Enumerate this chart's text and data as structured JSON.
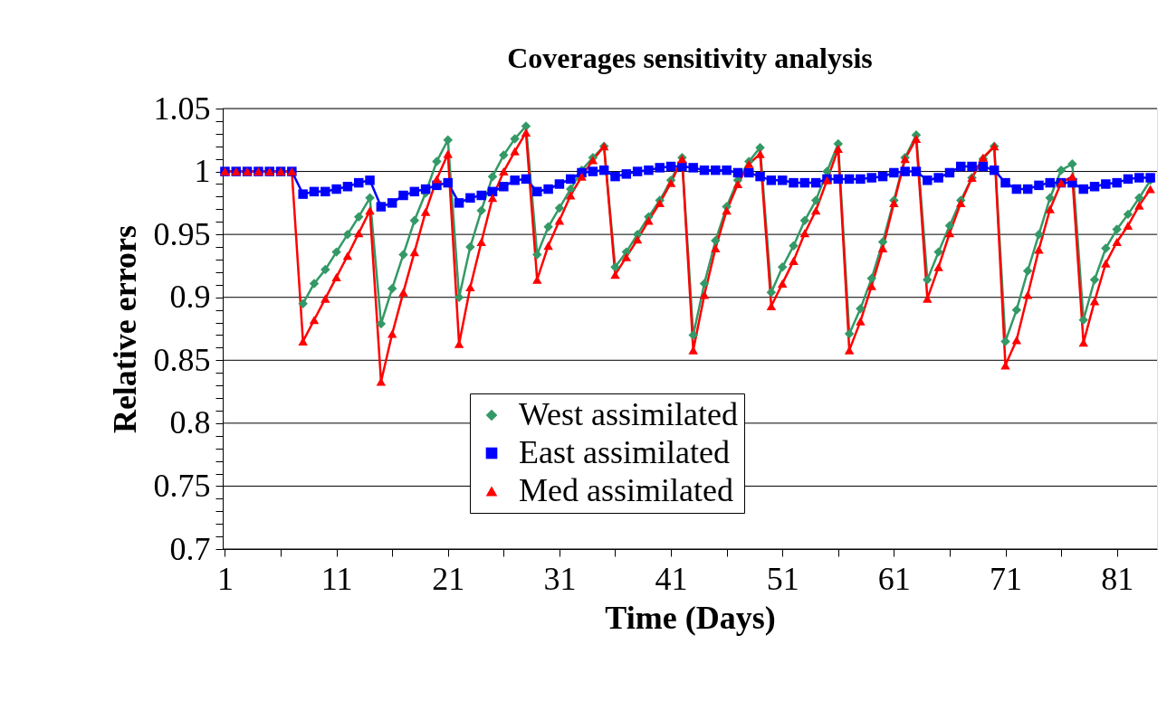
{
  "chart_data": {
    "type": "line",
    "title": "Coverages sensitivity analysis",
    "xlabel": "Time (Days)",
    "ylabel": "Relative errors",
    "x": [
      1,
      2,
      3,
      4,
      5,
      6,
      7,
      8,
      9,
      10,
      11,
      12,
      13,
      14,
      15,
      16,
      17,
      18,
      19,
      20,
      21,
      22,
      23,
      24,
      25,
      26,
      27,
      28,
      29,
      30,
      31,
      32,
      33,
      34,
      35,
      36,
      37,
      38,
      39,
      40,
      41,
      42,
      43,
      44,
      45,
      46,
      47,
      48,
      49,
      50,
      51,
      52,
      53,
      54,
      55,
      56,
      57,
      58,
      59,
      60,
      61,
      62,
      63,
      64,
      65,
      66,
      67,
      68,
      69,
      70,
      71,
      72,
      73,
      74,
      75,
      76,
      77,
      78,
      79,
      80,
      81,
      82,
      83,
      84
    ],
    "series": [
      {
        "name": "West assimilated",
        "color": "#339966",
        "marker": "diamond",
        "values": [
          null,
          null,
          null,
          null,
          null,
          null,
          null,
          0.895,
          0.911,
          0.922,
          0.936,
          0.95,
          0.964,
          0.979,
          0.879,
          0.907,
          0.934,
          0.961,
          0.983,
          1.008,
          1.025,
          0.9,
          0.94,
          0.969,
          0.996,
          1.013,
          1.026,
          1.036,
          0.934,
          0.956,
          0.971,
          0.986,
          1.001,
          1.011,
          1.02,
          0.924,
          0.936,
          0.95,
          0.964,
          0.977,
          0.993,
          1.011,
          0.87,
          0.911,
          0.945,
          0.972,
          0.993,
          1.008,
          1.019,
          0.904,
          0.924,
          0.941,
          0.961,
          0.977,
          1.0,
          1.022,
          0.871,
          0.891,
          0.915,
          0.944,
          0.977,
          1.011,
          1.029,
          0.914,
          0.936,
          0.957,
          0.977,
          0.995,
          1.01,
          1.02,
          0.865,
          0.89,
          0.921,
          0.95,
          0.979,
          1.001,
          1.006,
          0.882,
          0.914,
          0.939,
          0.954,
          0.966,
          0.979,
          0.993
        ]
      },
      {
        "name": "East assimilated",
        "color": "#0000ff",
        "marker": "square",
        "values": [
          1,
          1,
          1,
          1,
          1,
          1,
          1,
          0.982,
          0.984,
          0.984,
          0.986,
          0.988,
          0.991,
          0.993,
          0.972,
          0.975,
          0.981,
          0.984,
          0.986,
          0.989,
          0.991,
          0.975,
          0.979,
          0.981,
          0.984,
          0.988,
          0.993,
          0.994,
          0.984,
          0.986,
          0.99,
          0.994,
          0.999,
          1.0,
          1.001,
          0.996,
          0.998,
          1.0,
          1.001,
          1.003,
          1.004,
          1.004,
          1.003,
          1.001,
          1.001,
          1.001,
          0.999,
          0.999,
          0.996,
          0.993,
          0.993,
          0.991,
          0.991,
          0.991,
          0.994,
          0.994,
          0.994,
          0.994,
          0.995,
          0.996,
          0.999,
          1.0,
          1.0,
          0.993,
          0.995,
          0.999,
          1.004,
          1.004,
          1.004,
          1.001,
          0.991,
          0.986,
          0.986,
          0.989,
          0.991,
          0.991,
          0.991,
          0.986,
          0.988,
          0.99,
          0.991,
          0.994,
          0.995,
          0.995
        ]
      },
      {
        "name": "Med assimilated",
        "color": "#ff0000",
        "marker": "triangle",
        "values": [
          1,
          1,
          1,
          1,
          1,
          1,
          1,
          0.865,
          0.882,
          0.899,
          0.916,
          0.933,
          0.951,
          0.969,
          0.833,
          0.871,
          0.904,
          0.936,
          0.968,
          0.994,
          1.014,
          0.863,
          0.908,
          0.944,
          0.979,
          1.0,
          1.016,
          1.031,
          0.914,
          0.941,
          0.961,
          0.981,
          0.996,
          1.009,
          1.02,
          0.918,
          0.932,
          0.946,
          0.961,
          0.975,
          0.991,
          1.01,
          0.858,
          0.902,
          0.939,
          0.969,
          0.99,
          1.006,
          1.014,
          0.893,
          0.911,
          0.929,
          0.951,
          0.969,
          0.993,
          1.018,
          0.858,
          0.881,
          0.909,
          0.939,
          0.975,
          1.01,
          1.026,
          0.899,
          0.924,
          0.951,
          0.975,
          0.995,
          1.011,
          1.02,
          0.846,
          0.866,
          0.902,
          0.938,
          0.97,
          0.991,
          0.996,
          0.864,
          0.897,
          0.927,
          0.944,
          0.957,
          0.973,
          0.986
        ]
      }
    ],
    "xlim": [
      0.8,
      84.6
    ],
    "xticks": [
      1,
      {
        "value": 6,
        "label": null
      },
      11,
      {
        "value": 16,
        "label": null
      },
      21,
      {
        "value": 26,
        "label": null
      },
      31,
      {
        "value": 36,
        "label": null
      },
      41,
      {
        "value": 46,
        "label": null
      },
      51,
      {
        "value": 56,
        "label": null
      },
      61,
      {
        "value": 66,
        "label": null
      },
      71,
      {
        "value": 76,
        "label": null
      },
      81
    ],
    "ylim": [
      0.7,
      1.05
    ],
    "yticks": [
      0.7,
      {
        "value": 0.71,
        "label": null
      },
      {
        "value": 0.72,
        "label": null
      },
      {
        "value": 0.73,
        "label": null
      },
      {
        "value": 0.74,
        "label": null
      },
      0.75,
      {
        "value": 0.76,
        "label": null
      },
      {
        "value": 0.77,
        "label": null
      },
      {
        "value": 0.78,
        "label": null
      },
      {
        "value": 0.79,
        "label": null
      },
      0.8,
      {
        "value": 0.81,
        "label": null
      },
      {
        "value": 0.82,
        "label": null
      },
      {
        "value": 0.83,
        "label": null
      },
      {
        "value": 0.84,
        "label": null
      },
      0.85,
      {
        "value": 0.86,
        "label": null
      },
      {
        "value": 0.87,
        "label": null
      },
      {
        "value": 0.88,
        "label": null
      },
      {
        "value": 0.89,
        "label": null
      },
      0.9,
      {
        "value": 0.91,
        "label": null
      },
      {
        "value": 0.92,
        "label": null
      },
      {
        "value": 0.93,
        "label": null
      },
      {
        "value": 0.94,
        "label": null
      },
      0.95,
      {
        "value": 0.96,
        "label": null
      },
      {
        "value": 0.97,
        "label": null
      },
      {
        "value": 0.98,
        "label": null
      },
      {
        "value": 0.99,
        "label": null
      },
      1,
      {
        "value": 1.01,
        "label": null
      },
      {
        "value": 1.02,
        "label": null
      },
      {
        "value": 1.03,
        "label": null
      },
      {
        "value": 1.04,
        "label": null
      },
      1.05
    ],
    "grid": "y",
    "legend": "bottom",
    "line_style": "solid"
  }
}
